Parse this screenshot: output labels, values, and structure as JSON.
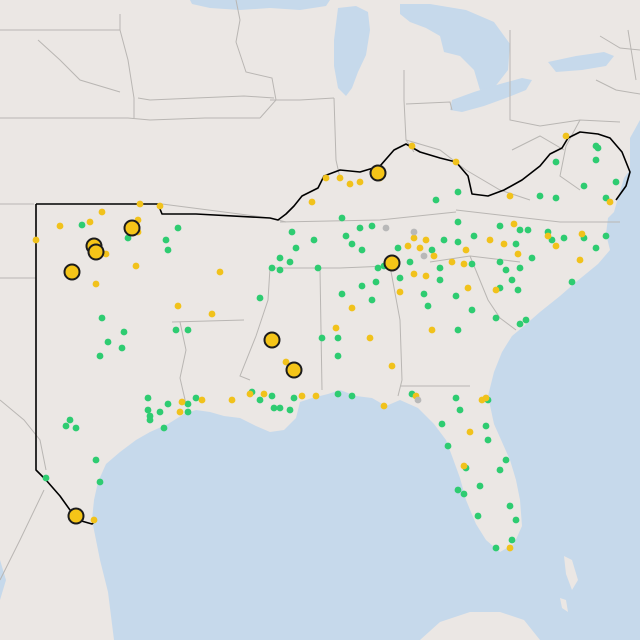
{
  "map": {
    "colors": {
      "land": "#ebe7e4",
      "water": "#c6d9eb",
      "state_border": "#b9b6b3",
      "region_outline": "#000000",
      "dot_green": "#2ecc71",
      "dot_yellow": "#f1c21b",
      "dot_gray": "#b8b8b8",
      "marker_fill": "#f5c518",
      "marker_stroke": "#1c1c1c"
    },
    "legend": [],
    "dots_green": [
      [
        82,
        225
      ],
      [
        128,
        238
      ],
      [
        102,
        318
      ],
      [
        108,
        342
      ],
      [
        124,
        332
      ],
      [
        100,
        356
      ],
      [
        122,
        348
      ],
      [
        176,
        330
      ],
      [
        188,
        330
      ],
      [
        166,
        240
      ],
      [
        168,
        250
      ],
      [
        178,
        228
      ],
      [
        260,
        298
      ],
      [
        280,
        258
      ],
      [
        272,
        268
      ],
      [
        280,
        270
      ],
      [
        290,
        262
      ],
      [
        292,
        232
      ],
      [
        296,
        248
      ],
      [
        314,
        240
      ],
      [
        318,
        268
      ],
      [
        342,
        218
      ],
      [
        352,
        244
      ],
      [
        346,
        236
      ],
      [
        360,
        228
      ],
      [
        362,
        250
      ],
      [
        372,
        226
      ],
      [
        372,
        300
      ],
      [
        376,
        282
      ],
      [
        378,
        268
      ],
      [
        362,
        286
      ],
      [
        398,
        248
      ],
      [
        400,
        278
      ],
      [
        384,
        266
      ],
      [
        410,
        262
      ],
      [
        424,
        294
      ],
      [
        428,
        306
      ],
      [
        432,
        250
      ],
      [
        440,
        280
      ],
      [
        440,
        268
      ],
      [
        444,
        240
      ],
      [
        458,
        242
      ],
      [
        458,
        222
      ],
      [
        474,
        236
      ],
      [
        472,
        264
      ],
      [
        456,
        296
      ],
      [
        472,
        310
      ],
      [
        458,
        330
      ],
      [
        500,
        262
      ],
      [
        506,
        270
      ],
      [
        512,
        280
      ],
      [
        520,
        268
      ],
      [
        516,
        244
      ],
      [
        520,
        230
      ],
      [
        528,
        230
      ],
      [
        548,
        232
      ],
      [
        552,
        240
      ],
      [
        564,
        238
      ],
      [
        584,
        238
      ],
      [
        596,
        248
      ],
      [
        606,
        236
      ],
      [
        518,
        290
      ],
      [
        500,
        288
      ],
      [
        532,
        258
      ],
      [
        496,
        318
      ],
      [
        520,
        324
      ],
      [
        526,
        320
      ],
      [
        572,
        282
      ],
      [
        540,
        196
      ],
      [
        556,
        198
      ],
      [
        584,
        186
      ],
      [
        596,
        146
      ],
      [
        596,
        160
      ],
      [
        598,
        148
      ],
      [
        606,
        198
      ],
      [
        616,
        182
      ],
      [
        556,
        162
      ],
      [
        436,
        200
      ],
      [
        458,
        192
      ],
      [
        500,
        226
      ],
      [
        96,
        460
      ],
      [
        46,
        478
      ],
      [
        100,
        482
      ],
      [
        70,
        420
      ],
      [
        66,
        426
      ],
      [
        76,
        428
      ],
      [
        148,
        398
      ],
      [
        148,
        410
      ],
      [
        150,
        416
      ],
      [
        150,
        420
      ],
      [
        160,
        412
      ],
      [
        164,
        428
      ],
      [
        168,
        404
      ],
      [
        188,
        404
      ],
      [
        188,
        412
      ],
      [
        196,
        398
      ],
      [
        252,
        392
      ],
      [
        260,
        400
      ],
      [
        272,
        396
      ],
      [
        274,
        408
      ],
      [
        280,
        408
      ],
      [
        290,
        410
      ],
      [
        338,
        394
      ],
      [
        352,
        396
      ],
      [
        294,
        398
      ],
      [
        412,
        394
      ],
      [
        442,
        424
      ],
      [
        456,
        398
      ],
      [
        460,
        410
      ],
      [
        448,
        446
      ],
      [
        480,
        486
      ],
      [
        466,
        468
      ],
      [
        458,
        490
      ],
      [
        464,
        494
      ],
      [
        500,
        470
      ],
      [
        506,
        460
      ],
      [
        486,
        426
      ],
      [
        510,
        506
      ],
      [
        516,
        520
      ],
      [
        512,
        540
      ],
      [
        496,
        548
      ],
      [
        478,
        516
      ],
      [
        488,
        400
      ],
      [
        488,
        440
      ],
      [
        322,
        338
      ],
      [
        342,
        294
      ],
      [
        338,
        338
      ],
      [
        338,
        356
      ]
    ],
    "dots_yellow": [
      [
        36,
        240
      ],
      [
        60,
        226
      ],
      [
        90,
        222
      ],
      [
        102,
        212
      ],
      [
        138,
        220
      ],
      [
        140,
        204
      ],
      [
        160,
        206
      ],
      [
        106,
        254
      ],
      [
        136,
        266
      ],
      [
        96,
        284
      ],
      [
        220,
        272
      ],
      [
        178,
        306
      ],
      [
        212,
        314
      ],
      [
        286,
        362
      ],
      [
        336,
        328
      ],
      [
        352,
        308
      ],
      [
        370,
        338
      ],
      [
        400,
        292
      ],
      [
        408,
        246
      ],
      [
        414,
        238
      ],
      [
        420,
        248
      ],
      [
        426,
        240
      ],
      [
        434,
        256
      ],
      [
        414,
        274
      ],
      [
        426,
        276
      ],
      [
        452,
        262
      ],
      [
        466,
        250
      ],
      [
        490,
        240
      ],
      [
        504,
        244
      ],
      [
        514,
        224
      ],
      [
        548,
        236
      ],
      [
        556,
        246
      ],
      [
        518,
        254
      ],
      [
        468,
        288
      ],
      [
        464,
        264
      ],
      [
        496,
        290
      ],
      [
        580,
        260
      ],
      [
        582,
        234
      ],
      [
        610,
        202
      ],
      [
        566,
        136
      ],
      [
        412,
        146
      ],
      [
        456,
        162
      ],
      [
        510,
        196
      ],
      [
        340,
        178
      ],
      [
        326,
        178
      ],
      [
        312,
        202
      ],
      [
        350,
        184
      ],
      [
        360,
        182
      ],
      [
        380,
        178
      ],
      [
        302,
        396
      ],
      [
        316,
        396
      ],
      [
        384,
        406
      ],
      [
        416,
        396
      ],
      [
        482,
        400
      ],
      [
        486,
        398
      ],
      [
        470,
        432
      ],
      [
        464,
        466
      ],
      [
        182,
        402
      ],
      [
        180,
        412
      ],
      [
        202,
        400
      ],
      [
        232,
        400
      ],
      [
        250,
        394
      ],
      [
        264,
        394
      ],
      [
        94,
        520
      ],
      [
        510,
        548
      ],
      [
        392,
        366
      ],
      [
        432,
        330
      ],
      [
        138,
        232
      ]
    ],
    "dots_gray": [
      [
        386,
        228
      ],
      [
        414,
        232
      ],
      [
        424,
        256
      ],
      [
        418,
        400
      ]
    ],
    "markers": [
      [
        378,
        173
      ],
      [
        132,
        228
      ],
      [
        94,
        246
      ],
      [
        96,
        252
      ],
      [
        72,
        272
      ],
      [
        392,
        263
      ],
      [
        272,
        340
      ],
      [
        294,
        370
      ],
      [
        76,
        516
      ]
    ]
  }
}
